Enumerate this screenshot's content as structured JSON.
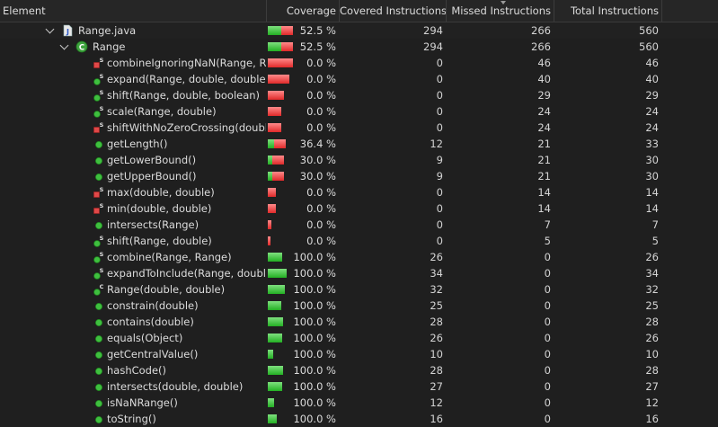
{
  "columns": {
    "element": "Element",
    "coverage": "Coverage",
    "covered": "Covered Instructions",
    "missed": "Missed Instructions",
    "total": "Total Instructions"
  },
  "rows": [
    {
      "name": "Range.java",
      "icon": "java-file-icon",
      "level": 0,
      "expanded": true,
      "coverage": "52.5 %",
      "cov_fraction": 0.525,
      "covered": "294",
      "missed": "266",
      "total": "560"
    },
    {
      "name": "Range",
      "icon": "class-icon",
      "level": 1,
      "expanded": true,
      "coverage": "52.5 %",
      "cov_fraction": 0.525,
      "covered": "294",
      "missed": "266",
      "total": "560"
    },
    {
      "name": "combineIgnoringNaN(Range, Range, ...",
      "icon": "private-static-method-icon",
      "level": 2,
      "coverage": "0.0 %",
      "cov_fraction": 0.0,
      "covered": "0",
      "missed": "46",
      "total": "46"
    },
    {
      "name": "expand(Range, double, double)",
      "icon": "public-static-method-icon",
      "level": 2,
      "coverage": "0.0 %",
      "cov_fraction": 0.0,
      "covered": "0",
      "missed": "40",
      "total": "40"
    },
    {
      "name": "shift(Range, double, boolean)",
      "icon": "public-static-method-icon",
      "level": 2,
      "coverage": "0.0 %",
      "cov_fraction": 0.0,
      "covered": "0",
      "missed": "29",
      "total": "29"
    },
    {
      "name": "scale(Range, double)",
      "icon": "public-static-method-icon",
      "level": 2,
      "coverage": "0.0 %",
      "cov_fraction": 0.0,
      "covered": "0",
      "missed": "24",
      "total": "24"
    },
    {
      "name": "shiftWithNoZeroCrossing(double, double)",
      "icon": "private-static-method-icon",
      "level": 2,
      "coverage": "0.0 %",
      "cov_fraction": 0.0,
      "covered": "0",
      "missed": "24",
      "total": "24"
    },
    {
      "name": "getLength()",
      "icon": "public-method-icon",
      "level": 2,
      "coverage": "36.4 %",
      "cov_fraction": 0.364,
      "covered": "12",
      "missed": "21",
      "total": "33"
    },
    {
      "name": "getLowerBound()",
      "icon": "public-method-icon",
      "level": 2,
      "coverage": "30.0 %",
      "cov_fraction": 0.3,
      "covered": "9",
      "missed": "21",
      "total": "30"
    },
    {
      "name": "getUpperBound()",
      "icon": "public-method-icon",
      "level": 2,
      "coverage": "30.0 %",
      "cov_fraction": 0.3,
      "covered": "9",
      "missed": "21",
      "total": "30"
    },
    {
      "name": "max(double, double)",
      "icon": "private-static-method-icon",
      "level": 2,
      "coverage": "0.0 %",
      "cov_fraction": 0.0,
      "covered": "0",
      "missed": "14",
      "total": "14"
    },
    {
      "name": "min(double, double)",
      "icon": "private-static-method-icon",
      "level": 2,
      "coverage": "0.0 %",
      "cov_fraction": 0.0,
      "covered": "0",
      "missed": "14",
      "total": "14"
    },
    {
      "name": "intersects(Range)",
      "icon": "public-method-icon",
      "level": 2,
      "coverage": "0.0 %",
      "cov_fraction": 0.0,
      "covered": "0",
      "missed": "7",
      "total": "7"
    },
    {
      "name": "shift(Range, double)",
      "icon": "public-static-method-icon",
      "level": 2,
      "coverage": "0.0 %",
      "cov_fraction": 0.0,
      "covered": "0",
      "missed": "5",
      "total": "5"
    },
    {
      "name": "combine(Range, Range)",
      "icon": "public-static-method-icon",
      "level": 2,
      "coverage": "100.0 %",
      "cov_fraction": 1.0,
      "covered": "26",
      "missed": "0",
      "total": "26"
    },
    {
      "name": "expandToInclude(Range, double)",
      "icon": "public-static-method-icon",
      "level": 2,
      "coverage": "100.0 %",
      "cov_fraction": 1.0,
      "covered": "34",
      "missed": "0",
      "total": "34"
    },
    {
      "name": "Range(double, double)",
      "icon": "constructor-icon",
      "level": 2,
      "coverage": "100.0 %",
      "cov_fraction": 1.0,
      "covered": "32",
      "missed": "0",
      "total": "32"
    },
    {
      "name": "constrain(double)",
      "icon": "public-method-icon",
      "level": 2,
      "coverage": "100.0 %",
      "cov_fraction": 1.0,
      "covered": "25",
      "missed": "0",
      "total": "25"
    },
    {
      "name": "contains(double)",
      "icon": "public-method-icon",
      "level": 2,
      "coverage": "100.0 %",
      "cov_fraction": 1.0,
      "covered": "28",
      "missed": "0",
      "total": "28"
    },
    {
      "name": "equals(Object)",
      "icon": "public-method-icon",
      "level": 2,
      "coverage": "100.0 %",
      "cov_fraction": 1.0,
      "covered": "26",
      "missed": "0",
      "total": "26"
    },
    {
      "name": "getCentralValue()",
      "icon": "public-method-icon",
      "level": 2,
      "coverage": "100.0 %",
      "cov_fraction": 1.0,
      "covered": "10",
      "missed": "0",
      "total": "10"
    },
    {
      "name": "hashCode()",
      "icon": "public-method-icon",
      "level": 2,
      "coverage": "100.0 %",
      "cov_fraction": 1.0,
      "covered": "28",
      "missed": "0",
      "total": "28"
    },
    {
      "name": "intersects(double, double)",
      "icon": "public-method-icon",
      "level": 2,
      "coverage": "100.0 %",
      "cov_fraction": 1.0,
      "covered": "27",
      "missed": "0",
      "total": "27"
    },
    {
      "name": "isNaNRange()",
      "icon": "public-method-icon",
      "level": 2,
      "coverage": "100.0 %",
      "cov_fraction": 1.0,
      "covered": "12",
      "missed": "0",
      "total": "12"
    },
    {
      "name": "toString()",
      "icon": "public-method-icon",
      "level": 2,
      "coverage": "100.0 %",
      "cov_fraction": 1.0,
      "covered": "16",
      "missed": "0",
      "total": "16"
    }
  ]
}
